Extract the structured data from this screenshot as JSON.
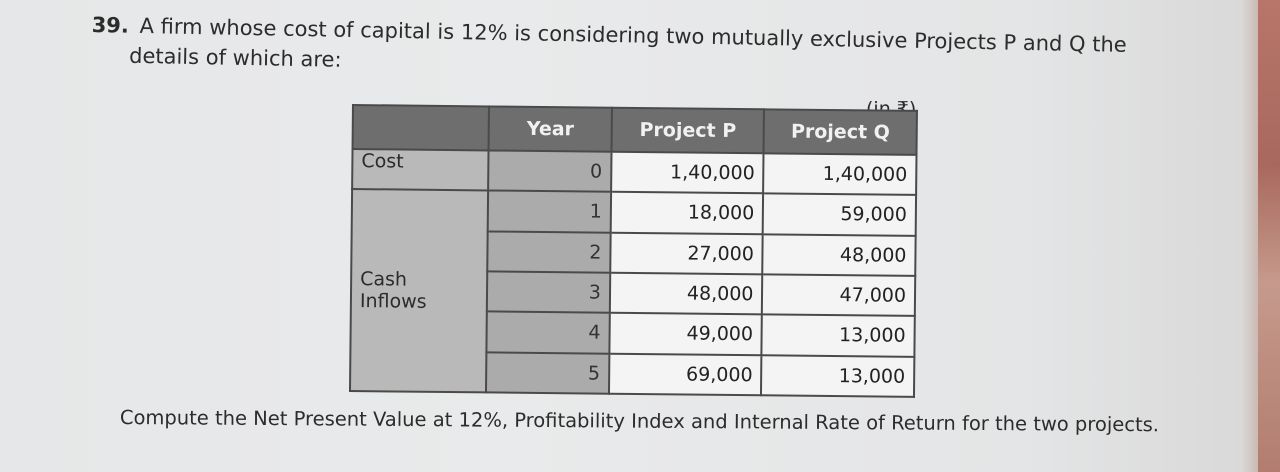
{
  "question": {
    "number": "39.",
    "line1": "A firm whose cost of capital is 12% is considering two mutually exclusive Projects P and Q the",
    "line2": "details of which are:"
  },
  "currency_note": "(in ₹)",
  "table": {
    "headers": {
      "corner": "",
      "year": "Year",
      "project_p": "Project P",
      "project_q": "Project Q"
    },
    "labels": {
      "cost": "Cost",
      "cash_inflows_line1": "Cash",
      "cash_inflows_line2": "Inflows"
    },
    "rows": [
      {
        "year": "0",
        "p": "1,40,000",
        "q": "1,40,000"
      },
      {
        "year": "1",
        "p": "18,000",
        "q": "59,000"
      },
      {
        "year": "2",
        "p": "27,000",
        "q": "48,000"
      },
      {
        "year": "3",
        "p": "48,000",
        "q": "47,000"
      },
      {
        "year": "4",
        "p": "49,000",
        "q": "13,000"
      },
      {
        "year": "5",
        "p": "69,000",
        "q": "13,000"
      }
    ]
  },
  "instruction": "Compute the Net Present Value at 12%, Profitability Index and Internal Rate of Return for the two projects."
}
